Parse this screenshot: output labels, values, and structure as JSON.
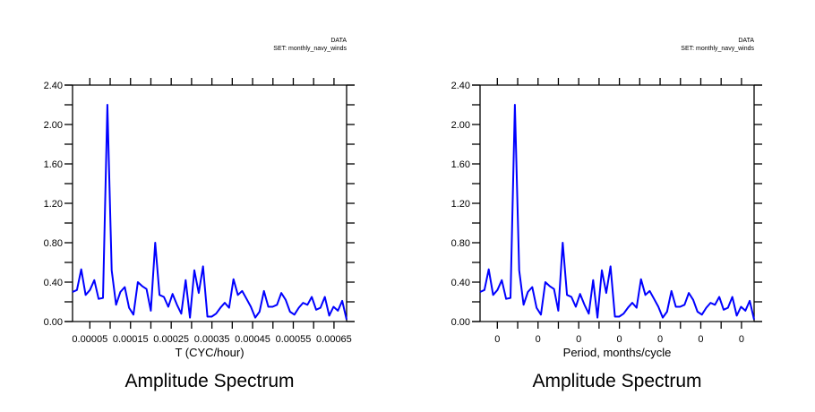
{
  "chart_data": [
    {
      "type": "line",
      "title": "Amplitude Spectrum",
      "dataset_label": "DATA",
      "dataset_set": "SET: monthly_navy_winds",
      "xlabel": "T (CYC/hour)",
      "ylabel": "",
      "xlim": [
        7.5e-06,
        0.000681
      ],
      "ylim": [
        0,
        2.4
      ],
      "x_ticks": [
        5e-05,
        0.00015,
        0.00025,
        0.00035,
        0.00045,
        0.00055,
        0.00065
      ],
      "x_tick_labels": [
        "0.00005",
        "0.00015",
        "0.00025",
        "0.00035",
        "0.00045",
        "0.00055",
        "0.00065"
      ],
      "y_ticks": [
        0,
        0.4,
        0.8,
        1.2,
        1.6,
        2.0,
        2.4
      ],
      "y_tick_labels": [
        "0.00",
        "0.40",
        "0.80",
        "1.20",
        "1.60",
        "2.00",
        "2.40"
      ],
      "x_start": 7.5e-06,
      "x_step": 1.069e-05,
      "line_color": "#0000ff",
      "series": [
        {
          "name": "amplitude",
          "values": [
            0.3,
            0.32,
            0.53,
            0.27,
            0.32,
            0.42,
            0.23,
            0.24,
            2.2,
            0.52,
            0.17,
            0.3,
            0.35,
            0.14,
            0.07,
            0.4,
            0.36,
            0.33,
            0.11,
            0.8,
            0.27,
            0.25,
            0.15,
            0.28,
            0.17,
            0.08,
            0.42,
            0.04,
            0.52,
            0.29,
            0.56,
            0.05,
            0.05,
            0.08,
            0.14,
            0.19,
            0.14,
            0.43,
            0.27,
            0.31,
            0.23,
            0.15,
            0.04,
            0.1,
            0.31,
            0.15,
            0.15,
            0.17,
            0.29,
            0.22,
            0.1,
            0.07,
            0.14,
            0.19,
            0.17,
            0.25,
            0.12,
            0.14,
            0.25,
            0.06,
            0.15,
            0.11,
            0.21,
            0.02
          ]
        }
      ]
    },
    {
      "type": "line",
      "title": "Amplitude Spectrum",
      "dataset_label": "DATA",
      "dataset_set": "SET: monthly_navy_winds",
      "xlabel": "Period, months/cycle",
      "ylabel": "",
      "xlim": [
        7.5e-06,
        0.000681
      ],
      "ylim": [
        0,
        2.4
      ],
      "x_ticks": [
        5e-05,
        0.00015,
        0.00025,
        0.00035,
        0.00045,
        0.00055,
        0.00065
      ],
      "x_tick_labels": [
        "0",
        "0",
        "0",
        "0",
        "0",
        "0",
        "0"
      ],
      "y_ticks": [
        0,
        0.4,
        0.8,
        1.2,
        1.6,
        2.0,
        2.4
      ],
      "y_tick_labels": [
        "0.00",
        "0.40",
        "0.80",
        "1.20",
        "1.60",
        "2.00",
        "2.40"
      ],
      "x_start": 7.5e-06,
      "x_step": 1.069e-05,
      "line_color": "#0000ff",
      "series": [
        {
          "name": "amplitude",
          "values": [
            0.3,
            0.32,
            0.53,
            0.27,
            0.32,
            0.42,
            0.23,
            0.24,
            2.2,
            0.52,
            0.17,
            0.3,
            0.35,
            0.14,
            0.07,
            0.4,
            0.36,
            0.33,
            0.11,
            0.8,
            0.27,
            0.25,
            0.15,
            0.28,
            0.17,
            0.08,
            0.42,
            0.04,
            0.52,
            0.29,
            0.56,
            0.05,
            0.05,
            0.08,
            0.14,
            0.19,
            0.14,
            0.43,
            0.27,
            0.31,
            0.23,
            0.15,
            0.04,
            0.1,
            0.31,
            0.15,
            0.15,
            0.17,
            0.29,
            0.22,
            0.1,
            0.07,
            0.14,
            0.19,
            0.17,
            0.25,
            0.12,
            0.14,
            0.25,
            0.06,
            0.15,
            0.11,
            0.21,
            0.02
          ]
        }
      ]
    }
  ]
}
